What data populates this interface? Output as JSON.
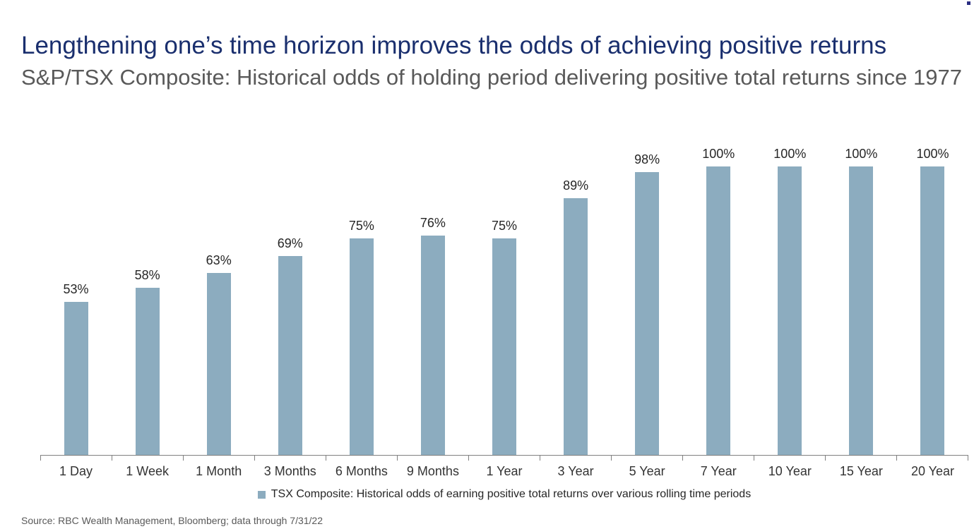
{
  "page": {
    "title": "Lengthening one’s time horizon improves the odds of achieving positive returns",
    "subtitle": "S&P/TSX Composite: Historical odds of holding period delivering positive total returns since 1977",
    "source": "Source: RBC Wealth Management, Bloomberg; data through 7/31/22"
  },
  "colors": {
    "title_navy": "#1a2f6e",
    "subtitle_gray": "#595959",
    "bar_fill": "#8cacbf",
    "axis_gray": "#808080",
    "label_text": "#262626"
  },
  "chart_data": {
    "type": "bar",
    "title": "Lengthening one’s time horizon improves the odds of achieving positive returns",
    "subtitle": "S&P/TSX Composite: Historical odds of holding period delivering positive total returns since 1977",
    "categories": [
      "1 Day",
      "1 Week",
      "1 Month",
      "3 Months",
      "6 Months",
      "9 Months",
      "1 Year",
      "3 Year",
      "5 Year",
      "7 Year",
      "10 Year",
      "15 Year",
      "20 Year"
    ],
    "values": [
      53,
      58,
      63,
      69,
      75,
      76,
      75,
      89,
      98,
      100,
      100,
      100,
      100
    ],
    "value_labels": [
      "53%",
      "58%",
      "63%",
      "69%",
      "75%",
      "76%",
      "75%",
      "89%",
      "98%",
      "100%",
      "100%",
      "100%",
      "100%"
    ],
    "xlabel": "",
    "ylabel": "",
    "ylim": [
      0,
      110
    ],
    "grid": false,
    "y_axis_visible": false,
    "bar_color": "#8cacbf",
    "legend": "TSX Composite: Historical odds of earning positive total returns over various rolling time periods",
    "legend_position": "bottom"
  }
}
